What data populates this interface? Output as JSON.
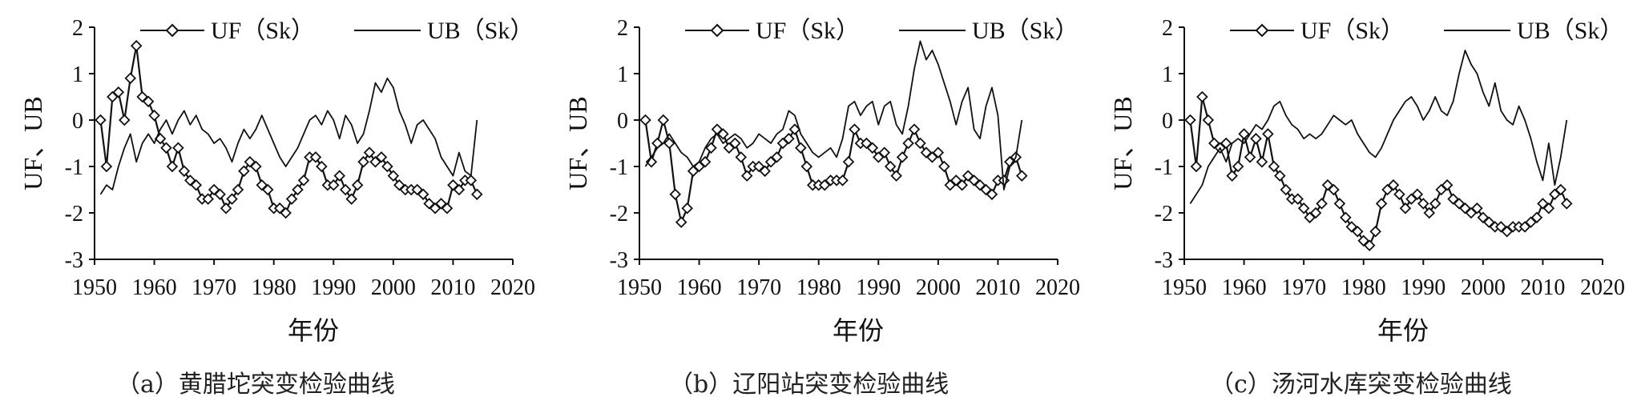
{
  "chart_data": [
    {
      "type": "line",
      "caption": "（a）黄腊坨突变检验曲线",
      "xlabel": "年份",
      "ylabel": "UF、UB",
      "xlim": [
        1950,
        2020
      ],
      "ylim": [
        -3,
        2
      ],
      "xticks": [
        1950,
        1960,
        1970,
        1980,
        1990,
        2000,
        2010,
        2020
      ],
      "yticks": [
        -3,
        -2,
        -1,
        0,
        1,
        2
      ],
      "legend_position": "top",
      "series": [
        {
          "name": "UF（Sk）",
          "marker": "diamond",
          "x": [
            1951,
            1952,
            1953,
            1954,
            1955,
            1956,
            1957,
            1958,
            1959,
            1960,
            1961,
            1962,
            1963,
            1964,
            1965,
            1966,
            1967,
            1968,
            1969,
            1970,
            1971,
            1972,
            1973,
            1974,
            1975,
            1976,
            1977,
            1978,
            1979,
            1980,
            1981,
            1982,
            1983,
            1984,
            1985,
            1986,
            1987,
            1988,
            1989,
            1990,
            1991,
            1992,
            1993,
            1994,
            1995,
            1996,
            1997,
            1998,
            1999,
            2000,
            2001,
            2002,
            2003,
            2004,
            2005,
            2006,
            2007,
            2008,
            2009,
            2010,
            2011,
            2012,
            2013,
            2014
          ],
          "values": [
            0,
            -1,
            0.5,
            0.6,
            0,
            0.9,
            1.6,
            0.5,
            0.4,
            0.1,
            -0.4,
            -0.6,
            -1.0,
            -0.6,
            -1.1,
            -1.3,
            -1.4,
            -1.7,
            -1.7,
            -1.5,
            -1.6,
            -1.9,
            -1.7,
            -1.5,
            -1.1,
            -0.9,
            -1.0,
            -1.4,
            -1.5,
            -1.9,
            -1.9,
            -2.0,
            -1.7,
            -1.5,
            -1.3,
            -0.8,
            -0.8,
            -1.0,
            -1.4,
            -1.4,
            -1.2,
            -1.5,
            -1.7,
            -1.4,
            -0.9,
            -0.7,
            -0.9,
            -0.8,
            -1.0,
            -1.2,
            -1.4,
            -1.5,
            -1.5,
            -1.5,
            -1.6,
            -1.8,
            -1.9,
            -1.8,
            -1.9,
            -1.4,
            -1.5,
            -1.3,
            -1.3,
            -1.6
          ]
        },
        {
          "name": "UB（Sk）",
          "marker": "none",
          "x": [
            1951,
            1952,
            1953,
            1954,
            1955,
            1956,
            1957,
            1958,
            1959,
            1960,
            1961,
            1962,
            1963,
            1964,
            1965,
            1966,
            1967,
            1968,
            1969,
            1970,
            1971,
            1972,
            1973,
            1974,
            1975,
            1976,
            1977,
            1978,
            1979,
            1980,
            1981,
            1982,
            1983,
            1984,
            1985,
            1986,
            1987,
            1988,
            1989,
            1990,
            1991,
            1992,
            1993,
            1994,
            1995,
            1996,
            1997,
            1998,
            1999,
            2000,
            2001,
            2002,
            2003,
            2004,
            2005,
            2006,
            2007,
            2008,
            2009,
            2010,
            2011,
            2012,
            2013,
            2014
          ],
          "values": [
            -1.6,
            -1.4,
            -1.5,
            -1.0,
            -0.6,
            -0.3,
            -0.9,
            -0.5,
            -0.3,
            -0.5,
            -0.2,
            0,
            -0.3,
            0,
            0.2,
            -0.1,
            0.1,
            -0.2,
            -0.3,
            -0.5,
            -0.4,
            -0.6,
            -0.9,
            -0.5,
            -0.2,
            -0.4,
            -0.2,
            0.1,
            -0.2,
            -0.5,
            -0.8,
            -1.0,
            -0.8,
            -0.6,
            -0.3,
            0,
            0.1,
            -0.1,
            0.2,
            0,
            -0.4,
            0.1,
            -0.1,
            -0.5,
            -0.3,
            0.2,
            0.8,
            0.6,
            0.9,
            0.7,
            0.2,
            -0.1,
            -0.5,
            -0.1,
            0,
            -0.2,
            -0.4,
            -0.8,
            -1.0,
            -1.2,
            -0.7,
            -1.1,
            -1.2,
            0
          ]
        }
      ]
    },
    {
      "type": "line",
      "caption": "（b）辽阳站突变检验曲线",
      "xlabel": "年份",
      "ylabel": "UF、UB",
      "xlim": [
        1950,
        2020
      ],
      "ylim": [
        -3,
        2
      ],
      "xticks": [
        1950,
        1960,
        1970,
        1980,
        1990,
        2000,
        2010,
        2020
      ],
      "yticks": [
        -3,
        -2,
        -1,
        0,
        1,
        2
      ],
      "legend_position": "top",
      "series": [
        {
          "name": "UF（Sk）",
          "marker": "diamond",
          "x": [
            1951,
            1952,
            1953,
            1954,
            1955,
            1956,
            1957,
            1958,
            1959,
            1960,
            1961,
            1962,
            1963,
            1964,
            1965,
            1966,
            1967,
            1968,
            1969,
            1970,
            1971,
            1972,
            1973,
            1974,
            1975,
            1976,
            1977,
            1978,
            1979,
            1980,
            1981,
            1982,
            1983,
            1984,
            1985,
            1986,
            1987,
            1988,
            1989,
            1990,
            1991,
            1992,
            1993,
            1994,
            1995,
            1996,
            1997,
            1998,
            1999,
            2000,
            2001,
            2002,
            2003,
            2004,
            2005,
            2006,
            2007,
            2008,
            2009,
            2010,
            2011,
            2012,
            2013,
            2014
          ],
          "values": [
            0,
            -0.9,
            -0.5,
            0,
            -0.5,
            -1.6,
            -2.2,
            -1.9,
            -1.1,
            -1.0,
            -0.9,
            -0.6,
            -0.2,
            -0.3,
            -0.6,
            -0.5,
            -0.8,
            -1.2,
            -1.0,
            -1.0,
            -1.1,
            -0.9,
            -0.8,
            -0.5,
            -0.4,
            -0.2,
            -0.6,
            -1.0,
            -1.4,
            -1.4,
            -1.4,
            -1.3,
            -1.3,
            -1.3,
            -0.9,
            -0.2,
            -0.5,
            -0.5,
            -0.6,
            -0.8,
            -0.7,
            -1.0,
            -1.2,
            -0.8,
            -0.5,
            -0.2,
            -0.5,
            -0.7,
            -0.8,
            -0.7,
            -1.0,
            -1.4,
            -1.3,
            -1.4,
            -1.2,
            -1.3,
            -1.4,
            -1.5,
            -1.6,
            -1.3,
            -1.3,
            -0.9,
            -0.8,
            -1.2
          ]
        },
        {
          "name": "UB（Sk）",
          "marker": "none",
          "x": [
            1951,
            1952,
            1953,
            1954,
            1955,
            1956,
            1957,
            1958,
            1959,
            1960,
            1961,
            1962,
            1963,
            1964,
            1965,
            1966,
            1967,
            1968,
            1969,
            1970,
            1971,
            1972,
            1973,
            1974,
            1975,
            1976,
            1977,
            1978,
            1979,
            1980,
            1981,
            1982,
            1983,
            1984,
            1985,
            1986,
            1987,
            1988,
            1989,
            1990,
            1991,
            1992,
            1993,
            1994,
            1995,
            1996,
            1997,
            1998,
            1999,
            2000,
            2001,
            2002,
            2003,
            2004,
            2005,
            2006,
            2007,
            2008,
            2009,
            2010,
            2011,
            2012,
            2013,
            2014
          ],
          "values": [
            -1.0,
            -0.8,
            -0.6,
            -0.5,
            -0.3,
            -0.5,
            -0.7,
            -0.8,
            -1.0,
            -0.9,
            -0.6,
            -0.4,
            -0.3,
            -0.5,
            -0.4,
            -0.3,
            -0.4,
            -0.6,
            -0.5,
            -0.3,
            -0.4,
            -0.5,
            -0.3,
            -0.2,
            0.2,
            0.1,
            -0.3,
            -0.5,
            -0.7,
            -0.8,
            -0.7,
            -0.6,
            -0.8,
            -0.4,
            0.3,
            0.4,
            0.1,
            0.3,
            0.4,
            -0.1,
            0.3,
            0.4,
            -0.1,
            -0.3,
            0.3,
            1.1,
            1.7,
            1.3,
            1.5,
            1.2,
            0.8,
            0.4,
            -0.1,
            0.4,
            0.7,
            -0.2,
            -0.4,
            0.3,
            0.7,
            0.1,
            -1.5,
            -1.0,
            -0.8,
            0
          ]
        }
      ]
    },
    {
      "type": "line",
      "caption": "（c）汤河水库突变检验曲线",
      "xlabel": "年份",
      "ylabel": "UF、UB",
      "xlim": [
        1950,
        2020
      ],
      "ylim": [
        -3,
        2
      ],
      "xticks": [
        1950,
        1960,
        1970,
        1980,
        1990,
        2000,
        2010,
        2020
      ],
      "yticks": [
        -3,
        -2,
        -1,
        0,
        1,
        2
      ],
      "legend_position": "top",
      "series": [
        {
          "name": "UF（Sk）",
          "marker": "diamond",
          "x": [
            1951,
            1952,
            1953,
            1954,
            1955,
            1956,
            1957,
            1958,
            1959,
            1960,
            1961,
            1962,
            1963,
            1964,
            1965,
            1966,
            1967,
            1968,
            1969,
            1970,
            1971,
            1972,
            1973,
            1974,
            1975,
            1976,
            1977,
            1978,
            1979,
            1980,
            1981,
            1982,
            1983,
            1984,
            1985,
            1986,
            1987,
            1988,
            1989,
            1990,
            1991,
            1992,
            1993,
            1994,
            1995,
            1996,
            1997,
            1998,
            1999,
            2000,
            2001,
            2002,
            2003,
            2004,
            2005,
            2006,
            2007,
            2008,
            2009,
            2010,
            2011,
            2012,
            2013,
            2014
          ],
          "values": [
            0,
            -1,
            0.5,
            0,
            -0.5,
            -0.6,
            -0.5,
            -1.2,
            -1.0,
            -0.3,
            -0.8,
            -0.4,
            -0.9,
            -0.3,
            -1.0,
            -1.2,
            -1.5,
            -1.7,
            -1.7,
            -1.9,
            -2.1,
            -2.0,
            -1.8,
            -1.4,
            -1.5,
            -1.8,
            -2.1,
            -2.3,
            -2.4,
            -2.6,
            -2.7,
            -2.4,
            -1.8,
            -1.5,
            -1.4,
            -1.6,
            -1.9,
            -1.7,
            -1.6,
            -1.8,
            -2.0,
            -1.8,
            -1.5,
            -1.4,
            -1.7,
            -1.8,
            -1.9,
            -2.0,
            -1.9,
            -2.1,
            -2.2,
            -2.3,
            -2.3,
            -2.4,
            -2.3,
            -2.3,
            -2.3,
            -2.2,
            -2.1,
            -1.8,
            -1.9,
            -1.6,
            -1.5,
            -1.8
          ]
        },
        {
          "name": "UB（Sk）",
          "marker": "none",
          "x": [
            1951,
            1952,
            1953,
            1954,
            1955,
            1956,
            1957,
            1958,
            1959,
            1960,
            1961,
            1962,
            1963,
            1964,
            1965,
            1966,
            1967,
            1968,
            1969,
            1970,
            1971,
            1972,
            1973,
            1974,
            1975,
            1976,
            1977,
            1978,
            1979,
            1980,
            1981,
            1982,
            1983,
            1984,
            1985,
            1986,
            1987,
            1988,
            1989,
            1990,
            1991,
            1992,
            1993,
            1994,
            1995,
            1996,
            1997,
            1998,
            1999,
            2000,
            2001,
            2002,
            2003,
            2004,
            2005,
            2006,
            2007,
            2008,
            2009,
            2010,
            2011,
            2012,
            2013,
            2014
          ],
          "values": [
            -1.8,
            -1.6,
            -1.4,
            -1.0,
            -0.8,
            -0.6,
            -0.9,
            -0.5,
            -0.4,
            -0.5,
            -0.3,
            -0.1,
            -0.2,
            0,
            0.3,
            0.4,
            0.1,
            -0.1,
            -0.2,
            -0.4,
            -0.3,
            -0.4,
            -0.3,
            -0.1,
            0.1,
            0,
            -0.1,
            0,
            -0.3,
            -0.5,
            -0.7,
            -0.8,
            -0.6,
            -0.3,
            0,
            0.2,
            0.4,
            0.5,
            0.3,
            0,
            0.2,
            0.5,
            0.2,
            0.1,
            0.4,
            1.0,
            1.5,
            1.2,
            1.0,
            0.6,
            0.3,
            0.8,
            0.2,
            0,
            -0.1,
            0.3,
            0,
            -0.4,
            -0.9,
            -1.3,
            -0.5,
            -1.4,
            -0.8,
            0
          ]
        }
      ]
    }
  ]
}
